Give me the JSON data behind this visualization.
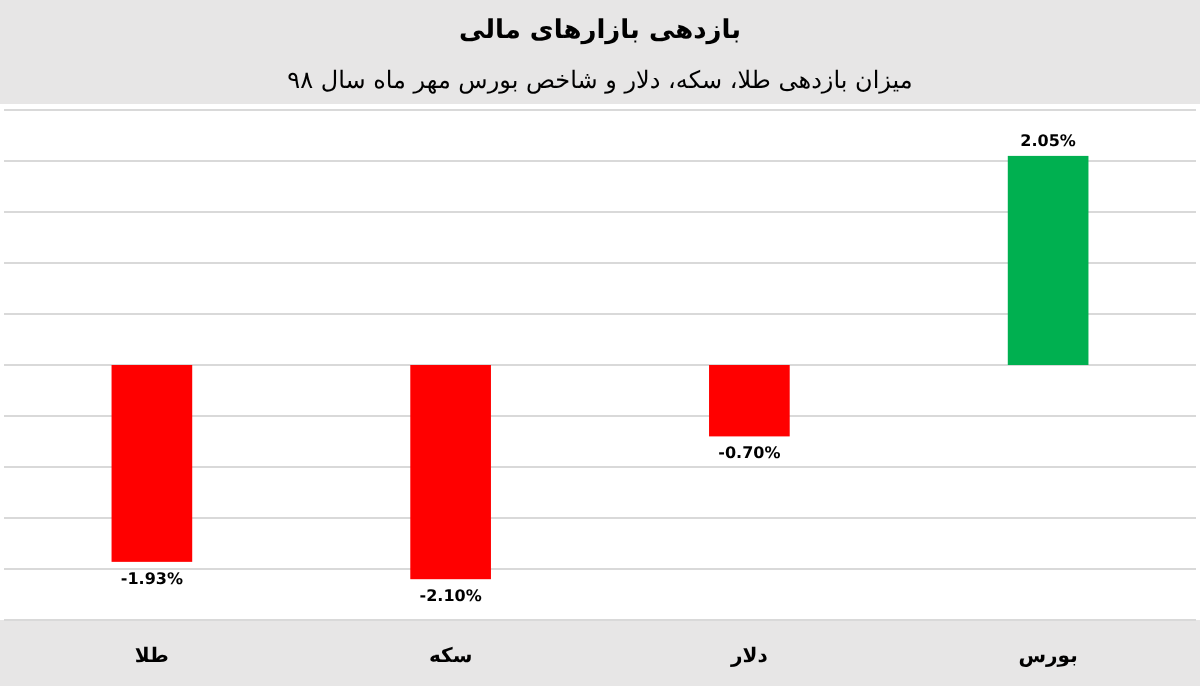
{
  "chart_data": {
    "type": "bar",
    "title": "بازدهی بازارهای مالی",
    "subtitle": "میزان بازدهی طلا، سکه، دلار و شاخص بورس مهر ماه سال ۹۸",
    "categories": [
      "طلا",
      "سکه",
      "دلار",
      "بورس"
    ],
    "values": [
      -1.93,
      -2.1,
      -0.7,
      2.05
    ],
    "value_labels": [
      "-1.93%",
      "-2.10%",
      "-0.70%",
      "2.05%"
    ],
    "colors": [
      "#ff0000",
      "#ff0000",
      "#ff0000",
      "#00b050"
    ],
    "ylim": [
      -2.5,
      2.5
    ],
    "yticks": [
      {
        "value": -2.5,
        "label": null
      },
      {
        "value": -2,
        "label": null
      },
      {
        "value": -1.5,
        "label": null
      },
      {
        "value": -1,
        "label": null
      },
      {
        "value": -0.5,
        "label": null
      },
      {
        "value": 0,
        "label": null
      },
      {
        "value": 0.5,
        "label": null
      },
      {
        "value": 1,
        "label": null
      },
      {
        "value": 1.5,
        "label": null
      },
      {
        "value": 2,
        "label": null
      },
      {
        "value": 2.5,
        "label": null
      }
    ],
    "grid": "y",
    "tick_labels": "x"
  }
}
